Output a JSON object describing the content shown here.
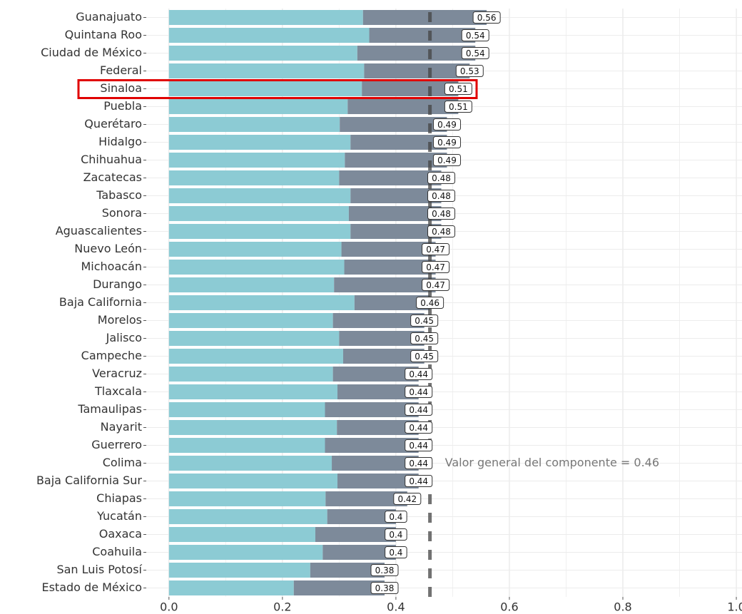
{
  "chart_data": {
    "type": "stacked-barh",
    "categories": [
      "Guanajuato",
      "Quintana Roo",
      "Ciudad de México",
      "Federal",
      "Sinaloa",
      "Puebla",
      "Querétaro",
      "Hidalgo",
      "Chihuahua",
      "Zacatecas",
      "Tabasco",
      "Sonora",
      "Aguascalientes",
      "Nuevo León",
      "Michoacán",
      "Durango",
      "Baja California",
      "Morelos",
      "Jalisco",
      "Campeche",
      "Veracruz",
      "Tlaxcala",
      "Tamaulipas",
      "Nayarit",
      "Guerrero",
      "Colima",
      "Baja California Sur",
      "Chiapas",
      "Yucatán",
      "Oaxaca",
      "Coahuila",
      "San Luis Potosí",
      "Estado de México"
    ],
    "series": [
      {
        "color": "#8ccbd4",
        "values": [
          0.342,
          0.353,
          0.332,
          0.344,
          0.34,
          0.315,
          0.301,
          0.32,
          0.31,
          0.3,
          0.32,
          0.317,
          0.32,
          0.304,
          0.309,
          0.291,
          0.327,
          0.289,
          0.3,
          0.307,
          0.289,
          0.297,
          0.275,
          0.296,
          0.275,
          0.287,
          0.297,
          0.276,
          0.279,
          0.258,
          0.271,
          0.249,
          0.22
        ]
      },
      {
        "color": "#7d8a9a",
        "values": [
          0.218,
          0.187,
          0.208,
          0.186,
          0.17,
          0.195,
          0.189,
          0.17,
          0.18,
          0.18,
          0.16,
          0.163,
          0.16,
          0.166,
          0.161,
          0.179,
          0.133,
          0.161,
          0.15,
          0.143,
          0.151,
          0.143,
          0.165,
          0.144,
          0.165,
          0.153,
          0.143,
          0.144,
          0.121,
          0.142,
          0.129,
          0.131,
          0.16
        ]
      }
    ],
    "total_labels": [
      0.56,
      0.54,
      0.54,
      0.53,
      0.51,
      0.51,
      0.49,
      0.49,
      0.49,
      0.48,
      0.48,
      0.48,
      0.48,
      0.47,
      0.47,
      0.47,
      0.46,
      0.45,
      0.45,
      0.45,
      0.44,
      0.44,
      0.44,
      0.44,
      0.44,
      0.44,
      0.44,
      0.42,
      0.4,
      0.4,
      0.4,
      0.38,
      0.38
    ],
    "reference_line": 0.46,
    "annotation": "Valor general del componente = 0.46",
    "highlight": "Sinaloa",
    "xlim": [
      -0.04,
      1.01
    ],
    "xticks": [
      {
        "value": 0,
        "label": "0.0"
      },
      0.2,
      0.4,
      0.6,
      0.8,
      {
        "value": 1,
        "label": "1.0"
      }
    ],
    "xminor_ticks": [
      0.1,
      0.3,
      0.5,
      0.7,
      0.9
    ],
    "grid": true
  }
}
